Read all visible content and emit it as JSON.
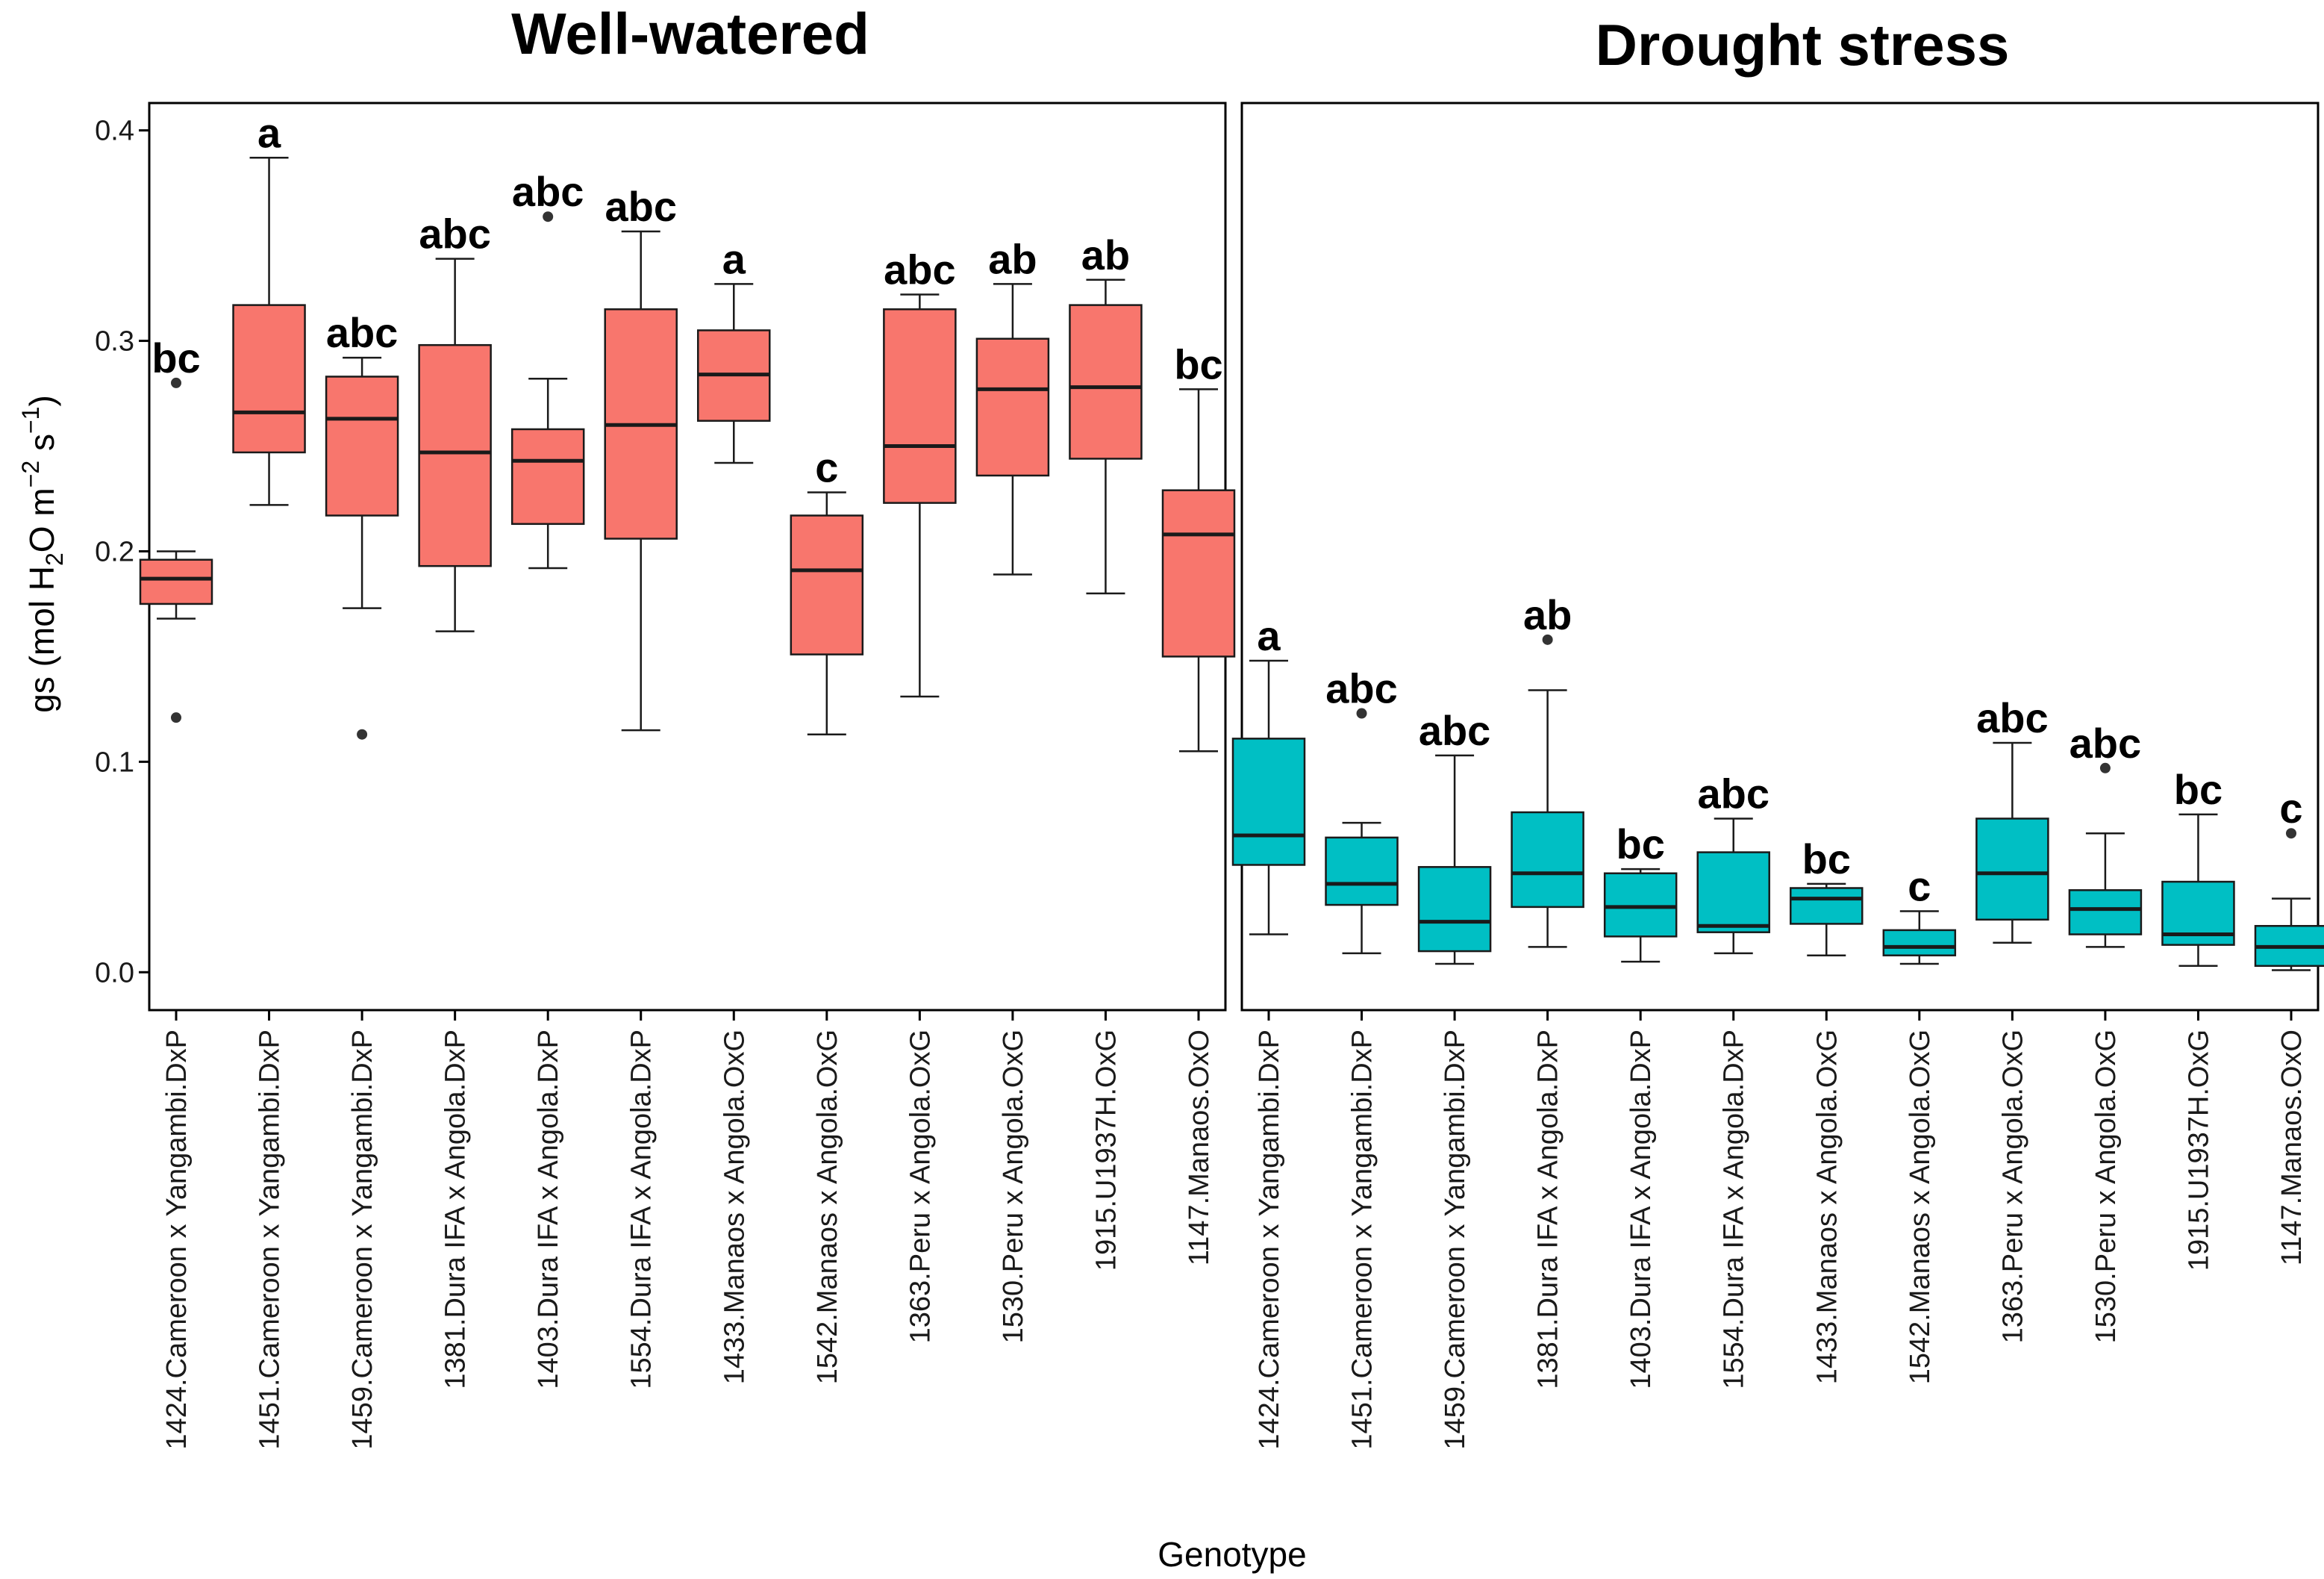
{
  "chart_data": [
    {
      "type": "box",
      "title": "Well-watered",
      "fill": "#F8766D",
      "ylabel": "gs (mol H2O m-2 s-1)",
      "ylabel_parts": {
        "a": "gs (mol H",
        "sub2": "2",
        "b": "O m",
        "sup1": "−2",
        "c": " s",
        "sup2": "−1",
        "d": ")"
      },
      "xlabel": "Genotype",
      "ylim": [
        -0.018,
        0.413
      ],
      "yticks": [
        0.0,
        0.1,
        0.2,
        0.3,
        0.4
      ],
      "ytick_labels": [
        "0.0",
        "0.1",
        "0.2",
        "0.3",
        "0.4"
      ],
      "categories": [
        "1424.Cameroon x Yangambi.DxP",
        "1451.Cameroon x Yangambi.DxP",
        "1459.Cameroon x Yangambi.DxP",
        "1381.Dura IFA x Angola.DxP",
        "1403.Dura IFA x Angola.DxP",
        "1554.Dura IFA x Angola.DxP",
        "1433.Manaos x Angola.OxG",
        "1542.Manaos x Angola.OxG",
        "1363.Peru x Angola.OxG",
        "1530.Peru x Angola.OxG",
        "1915.U1937H.OxG",
        "1147.Manaos.OxO"
      ],
      "boxes": [
        {
          "wlo": 0.168,
          "q1": 0.175,
          "median": 0.187,
          "q3": 0.196,
          "whi": 0.2,
          "outliers": [
            0.28,
            0.121
          ],
          "letter": "bc"
        },
        {
          "wlo": 0.222,
          "q1": 0.247,
          "median": 0.266,
          "q3": 0.317,
          "whi": 0.387,
          "outliers": [],
          "letter": "a"
        },
        {
          "wlo": 0.173,
          "q1": 0.217,
          "median": 0.263,
          "q3": 0.283,
          "whi": 0.292,
          "outliers": [
            0.113
          ],
          "letter": "abc"
        },
        {
          "wlo": 0.162,
          "q1": 0.193,
          "median": 0.247,
          "q3": 0.298,
          "whi": 0.339,
          "outliers": [],
          "letter": "abc"
        },
        {
          "wlo": 0.192,
          "q1": 0.213,
          "median": 0.243,
          "q3": 0.258,
          "whi": 0.282,
          "outliers": [
            0.359
          ],
          "letter": "abc"
        },
        {
          "wlo": 0.115,
          "q1": 0.206,
          "median": 0.26,
          "q3": 0.315,
          "whi": 0.352,
          "outliers": [],
          "letter": "abc"
        },
        {
          "wlo": 0.242,
          "q1": 0.262,
          "median": 0.284,
          "q3": 0.305,
          "whi": 0.327,
          "outliers": [],
          "letter": "a"
        },
        {
          "wlo": 0.113,
          "q1": 0.151,
          "median": 0.191,
          "q3": 0.217,
          "whi": 0.228,
          "outliers": [],
          "letter": "c"
        },
        {
          "wlo": 0.131,
          "q1": 0.223,
          "median": 0.25,
          "q3": 0.315,
          "whi": 0.322,
          "outliers": [],
          "letter": "abc"
        },
        {
          "wlo": 0.189,
          "q1": 0.236,
          "median": 0.277,
          "q3": 0.301,
          "whi": 0.327,
          "outliers": [],
          "letter": "ab"
        },
        {
          "wlo": 0.18,
          "q1": 0.244,
          "median": 0.278,
          "q3": 0.317,
          "whi": 0.329,
          "outliers": [],
          "letter": "ab"
        },
        {
          "wlo": 0.105,
          "q1": 0.15,
          "median": 0.208,
          "q3": 0.229,
          "whi": 0.277,
          "outliers": [],
          "letter": "bc"
        }
      ]
    },
    {
      "type": "box",
      "title": "Drought stress",
      "fill": "#00BFC4",
      "xlabel": "Genotype",
      "ylim": [
        -0.018,
        0.413
      ],
      "categories": [
        "1424.Cameroon x Yangambi.DxP",
        "1451.Cameroon x Yangambi.DxP",
        "1459.Cameroon x Yangambi.DxP",
        "1381.Dura IFA x Angola.DxP",
        "1403.Dura IFA x Angola.DxP",
        "1554.Dura IFA x Angola.DxP",
        "1433.Manaos x Angola.OxG",
        "1542.Manaos x Angola.OxG",
        "1363.Peru x Angola.OxG",
        "1530.Peru x Angola.OxG",
        "1915.U1937H.OxG",
        "1147.Manaos.OxO"
      ],
      "boxes": [
        {
          "wlo": 0.018,
          "q1": 0.051,
          "median": 0.065,
          "q3": 0.111,
          "whi": 0.148,
          "outliers": [],
          "letter": "a"
        },
        {
          "wlo": 0.009,
          "q1": 0.032,
          "median": 0.042,
          "q3": 0.064,
          "whi": 0.071,
          "outliers": [
            0.123
          ],
          "letter": "abc"
        },
        {
          "wlo": 0.004,
          "q1": 0.01,
          "median": 0.024,
          "q3": 0.05,
          "whi": 0.103,
          "outliers": [],
          "letter": "abc"
        },
        {
          "wlo": 0.012,
          "q1": 0.031,
          "median": 0.047,
          "q3": 0.076,
          "whi": 0.134,
          "outliers": [
            0.158
          ],
          "letter": "ab"
        },
        {
          "wlo": 0.005,
          "q1": 0.017,
          "median": 0.031,
          "q3": 0.047,
          "whi": 0.049,
          "outliers": [],
          "letter": "bc"
        },
        {
          "wlo": 0.009,
          "q1": 0.019,
          "median": 0.022,
          "q3": 0.057,
          "whi": 0.073,
          "outliers": [],
          "letter": "abc"
        },
        {
          "wlo": 0.008,
          "q1": 0.023,
          "median": 0.035,
          "q3": 0.04,
          "whi": 0.042,
          "outliers": [],
          "letter": "bc"
        },
        {
          "wlo": 0.004,
          "q1": 0.008,
          "median": 0.012,
          "q3": 0.02,
          "whi": 0.029,
          "outliers": [],
          "letter": "c"
        },
        {
          "wlo": 0.014,
          "q1": 0.025,
          "median": 0.047,
          "q3": 0.073,
          "whi": 0.109,
          "outliers": [],
          "letter": "abc"
        },
        {
          "wlo": 0.012,
          "q1": 0.018,
          "median": 0.03,
          "q3": 0.039,
          "whi": 0.066,
          "outliers": [
            0.097
          ],
          "letter": "abc"
        },
        {
          "wlo": 0.003,
          "q1": 0.013,
          "median": 0.018,
          "q3": 0.043,
          "whi": 0.075,
          "outliers": [],
          "letter": "bc"
        },
        {
          "wlo": 0.001,
          "q1": 0.003,
          "median": 0.012,
          "q3": 0.022,
          "whi": 0.035,
          "outliers": [
            0.066
          ],
          "letter": "c"
        }
      ]
    }
  ]
}
